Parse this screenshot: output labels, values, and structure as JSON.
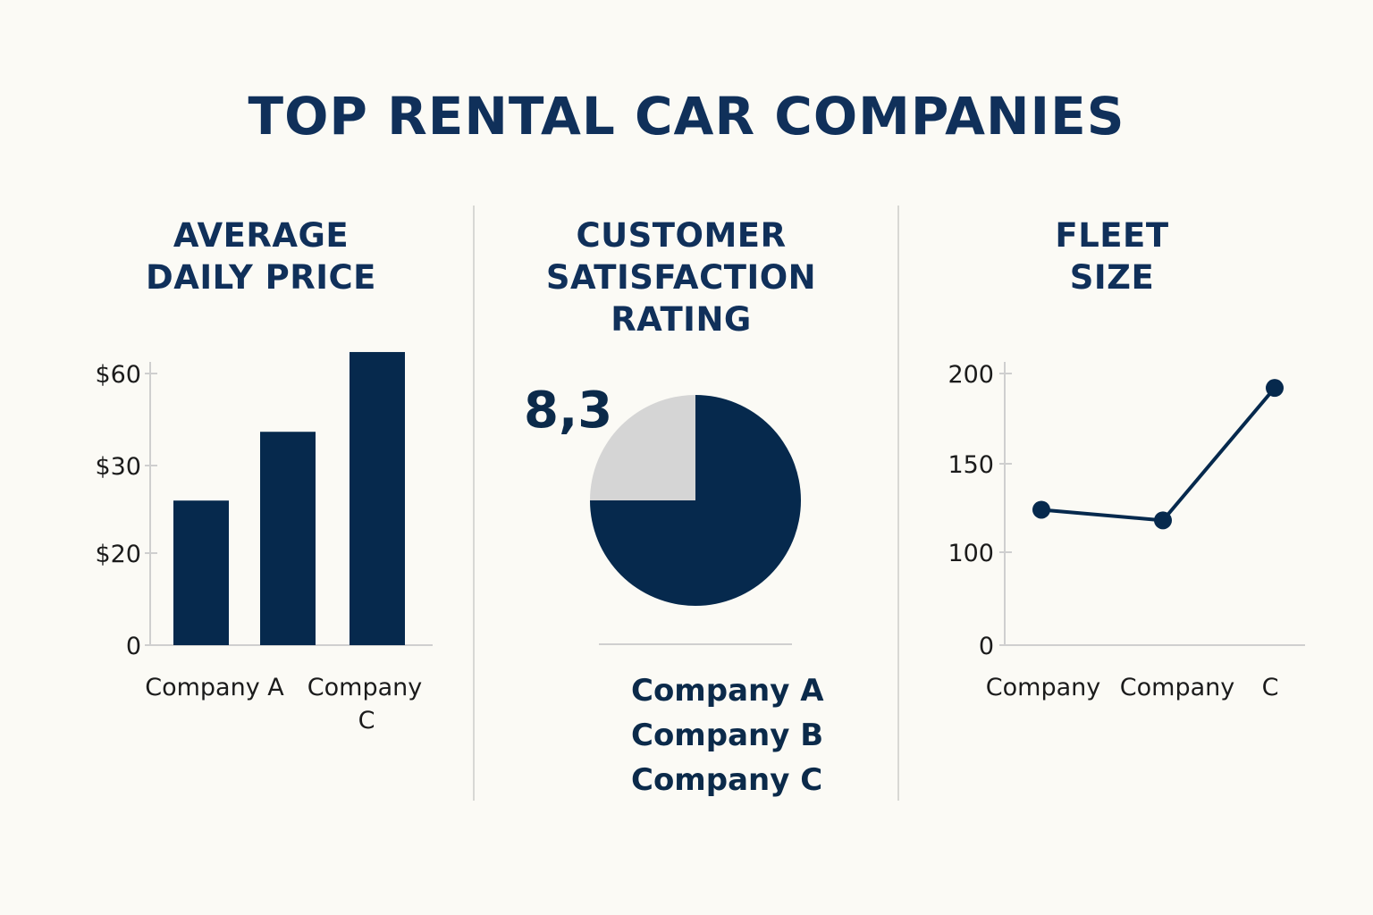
{
  "title": "TOP RENTAL CAR COMPANIES",
  "colors": {
    "navy": "#06294d",
    "light_gray": "#d5d5d5",
    "axis": "#cfcfcf",
    "background": "#fbfaf5"
  },
  "panels": {
    "price": {
      "title_lines": [
        "AVERAGE",
        "DAILY PRICE"
      ]
    },
    "satisfaction": {
      "title_lines": [
        "CUSTOMER",
        "SATISFACTION",
        "RATING"
      ]
    },
    "fleet": {
      "title_lines": [
        "FLEET",
        "SIZE"
      ]
    }
  },
  "chart_data": [
    {
      "type": "bar",
      "title": "AVERAGE DAILY PRICE",
      "y_ticks": [
        "$60",
        "$30",
        "$20",
        "0"
      ],
      "x_labels": [
        "Company A",
        "Company C"
      ],
      "values": [
        26,
        41,
        67
      ],
      "note": "bar heights estimated against the non-linear tick spacing"
    },
    {
      "type": "pie",
      "title": "CUSTOMER SATISFACTION RATING",
      "label": "8,3",
      "slices": [
        {
          "label": "",
          "value": 75,
          "color": "#06294d"
        },
        {
          "label": "",
          "value": 25,
          "color": "#d5d5d5"
        }
      ],
      "legend": [
        "Company A",
        "Company B",
        "Company C"
      ]
    },
    {
      "type": "line",
      "title": "FLEET SIZE",
      "y_ticks": [
        "200",
        "150",
        "100",
        "0"
      ],
      "x_labels": [
        "Company",
        "Company",
        "C"
      ],
      "values": [
        124,
        118,
        192
      ]
    }
  ]
}
